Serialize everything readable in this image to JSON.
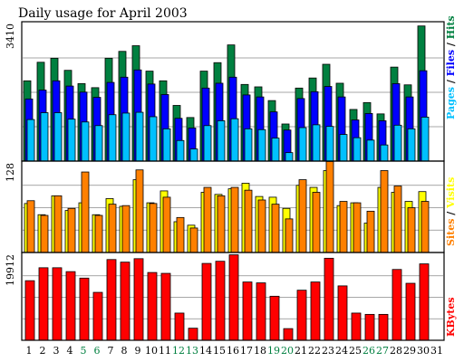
{
  "title": "Daily usage for April 2003",
  "colors": {
    "hits": "#008040",
    "files": "#0000ff",
    "pages": "#00c0ff",
    "visits": "#ffff00",
    "sites": "#ff8000",
    "kbytes": "#ff0000",
    "weekend_label": "#008040",
    "text": "#000000",
    "title": "#0000ff"
  },
  "legend": {
    "top": [
      {
        "label": "Pages",
        "color": "#00c0ff"
      },
      {
        "label": "/",
        "color": "#000000"
      },
      {
        "label": "Files",
        "color": "#0000ff"
      },
      {
        "label": "/",
        "color": "#000000"
      },
      {
        "label": "Hits",
        "color": "#008040"
      }
    ],
    "middle": [
      {
        "label": "Sites",
        "color": "#ff8000"
      },
      {
        "label": "/",
        "color": "#000000"
      },
      {
        "label": "Visits",
        "color": "#ffff00"
      }
    ],
    "bottom": [
      {
        "label": "KBytes",
        "color": "#ff0000"
      }
    ]
  },
  "chart_data": [
    {
      "type": "bar",
      "panel": "top",
      "ymax": 3410,
      "ymax_label": "3410",
      "ylim": [
        0,
        3410
      ],
      "grid": true,
      "categories": [
        "1",
        "2",
        "3",
        "4",
        "5",
        "6",
        "7",
        "8",
        "9",
        "10",
        "11",
        "12",
        "13",
        "14",
        "15",
        "16",
        "17",
        "18",
        "19",
        "20",
        "21",
        "22",
        "23",
        "24",
        "25",
        "26",
        "27",
        "28",
        "29",
        "30",
        "31"
      ],
      "weekend_days": [
        "5",
        "6",
        "12",
        "13",
        "19",
        "20",
        "26",
        "27"
      ],
      "series": [
        {
          "name": "Hits",
          "values": [
            1990,
            2450,
            2550,
            2250,
            1920,
            1820,
            2550,
            2720,
            2860,
            2230,
            1990,
            1380,
            1080,
            2230,
            2440,
            2880,
            1900,
            1840,
            1500,
            920,
            1810,
            2060,
            2400,
            1930,
            1280,
            1450,
            1170,
            2330,
            1890,
            3350,
            0
          ]
        },
        {
          "name": "Files",
          "values": [
            1540,
            1760,
            1990,
            1860,
            1710,
            1580,
            1950,
            2080,
            2260,
            1910,
            1650,
            1060,
            820,
            1810,
            1930,
            2080,
            1640,
            1590,
            1220,
            770,
            1550,
            1720,
            1850,
            1590,
            1020,
            1180,
            1000,
            1920,
            1590,
            2240,
            0
          ]
        },
        {
          "name": "Pages",
          "values": [
            1030,
            1200,
            1200,
            1040,
            970,
            880,
            1150,
            1190,
            1210,
            1100,
            800,
            510,
            300,
            880,
            1000,
            1050,
            800,
            780,
            570,
            210,
            830,
            900,
            860,
            660,
            580,
            520,
            400,
            890,
            800,
            1090,
            0
          ]
        }
      ]
    },
    {
      "type": "bar",
      "panel": "middle",
      "ymax": 128,
      "ymax_label": "128",
      "ylim": [
        0,
        128
      ],
      "grid": true,
      "categories": [
        "1",
        "2",
        "3",
        "4",
        "5",
        "6",
        "7",
        "8",
        "9",
        "10",
        "11",
        "12",
        "13",
        "14",
        "15",
        "16",
        "17",
        "18",
        "19",
        "20",
        "21",
        "22",
        "23",
        "24",
        "25",
        "26",
        "27",
        "28",
        "29",
        "30",
        "31"
      ],
      "series": [
        {
          "name": "Visits",
          "values": [
            70,
            54,
            81,
            60,
            71,
            54,
            77,
            66,
            104,
            71,
            88,
            44,
            39,
            86,
            83,
            91,
            99,
            80,
            79,
            63,
            96,
            93,
            117,
            67,
            71,
            42,
            93,
            86,
            73,
            87,
            0
          ]
        },
        {
          "name": "Sites",
          "values": [
            74,
            53,
            81,
            63,
            115,
            53,
            69,
            67,
            118,
            70,
            79,
            50,
            35,
            93,
            81,
            93,
            89,
            75,
            69,
            48,
            104,
            86,
            130,
            73,
            71,
            59,
            117,
            95,
            64,
            73,
            0
          ]
        }
      ]
    },
    {
      "type": "bar",
      "panel": "bottom",
      "ymax": 19912,
      "ymax_label": "19912",
      "ylim": [
        0,
        19912
      ],
      "grid": true,
      "categories": [
        "1",
        "2",
        "3",
        "4",
        "5",
        "6",
        "7",
        "8",
        "9",
        "10",
        "11",
        "12",
        "13",
        "14",
        "15",
        "16",
        "17",
        "18",
        "19",
        "20",
        "21",
        "22",
        "23",
        "24",
        "25",
        "26",
        "27",
        "28",
        "29",
        "30",
        "31"
      ],
      "series": [
        {
          "name": "KBytes",
          "values": [
            13800,
            16800,
            16800,
            15900,
            14400,
            11100,
            18700,
            18100,
            18900,
            15700,
            15500,
            6300,
            2800,
            17800,
            18300,
            19800,
            13500,
            13300,
            10200,
            2700,
            11600,
            13500,
            19000,
            12600,
            6300,
            6000,
            6000,
            16400,
            13200,
            17700,
            0
          ]
        }
      ]
    }
  ]
}
